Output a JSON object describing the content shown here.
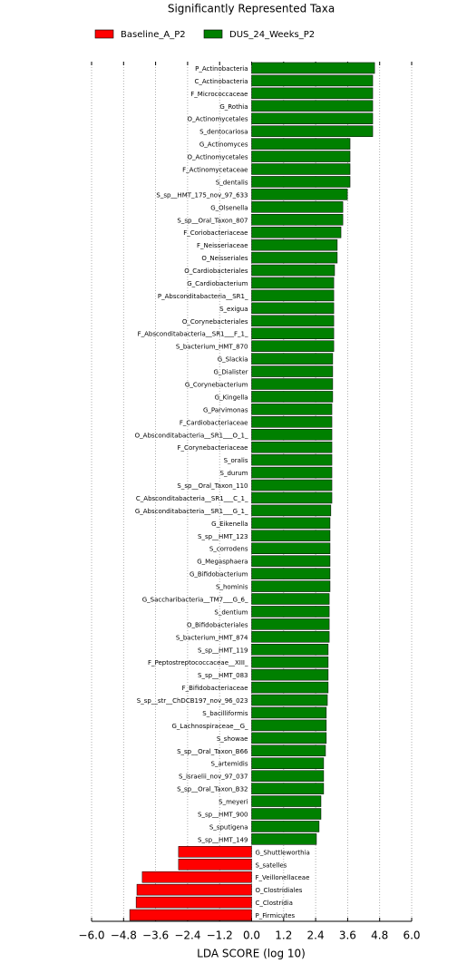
{
  "chart_data": {
    "type": "barh",
    "title": "Significantly Represented Taxa",
    "xlabel": "LDA SCORE (log 10)",
    "categories": [
      "P_Actinobacteria",
      "C_Actinobacteria",
      "F_Micrococcaceae",
      "G_Rothia",
      "O_Actinomycetales",
      "S_dentocariosa",
      "G_Actinomyces",
      "O_Actinomycetales",
      "F_Actinomycetaceae",
      "S_dentalis",
      "S_sp__HMT_175_nov_97_633",
      "G_Olsenella",
      "S_sp__Oral_Taxon_807",
      "F_Coriobacteriaceae",
      "F_Neisseriaceae",
      "O_Neisseriales",
      "O_Cardiobacteriales",
      "G_Cardiobacterium",
      "P_Absconditabacteria__SR1_",
      "S_exigua",
      "O_Corynebacteriales",
      "F_Absconditabacteria__SR1___F_1_",
      "S_bacterium_HMT_870",
      "G_Slackia",
      "G_Dialister",
      "G_Corynebacterium",
      "G_Kingella",
      "G_Parvimonas",
      "F_Cardiobacteriaceae",
      "O_Absconditabacteria__SR1___O_1_",
      "F_Corynebacteriaceae",
      "S_oralis",
      "S_durum",
      "S_sp__Oral_Taxon_110",
      "C_Absconditabacteria__SR1___C_1_",
      "G_Absconditabacteria__SR1___G_1_",
      "G_Eikenella",
      "S_sp__HMT_123",
      "S_corrodens",
      "G_Megasphaera",
      "G_Bifidobacterium",
      "S_hominis",
      "G_Saccharibacteria__TM7___G_6_",
      "S_dentium",
      "O_Bifidobacteriales",
      "S_bacterium_HMT_874",
      "S_sp__HMT_119",
      "F_Peptostreptococcaceae__XIII_",
      "S_sp__HMT_083",
      "F_Bifidobacteriaceae",
      "S_sp__str__ChDCB197_nov_96_023",
      "S_bacilliformis",
      "G_Lachnospiraceae__G_",
      "S_showae",
      "S_sp__Oral_Taxon_B66",
      "S_artemidis",
      "S_israelii_nov_97_037",
      "S_sp__Oral_Taxon_B32",
      "S_meyeri",
      "S_sp__HMT_900",
      "S_sputigena",
      "S_sp__HMT_149",
      "G_Shuttleworthia",
      "S_satelles",
      "F_Veillonellaceae",
      "O_Clostridiales",
      "C_Clostridia",
      "P_Firmicutes"
    ],
    "series": [
      {
        "name": "Baseline_A_P2",
        "color": "#ff0000",
        "values": [
          null,
          null,
          null,
          null,
          null,
          null,
          null,
          null,
          null,
          null,
          null,
          null,
          null,
          null,
          null,
          null,
          null,
          null,
          null,
          null,
          null,
          null,
          null,
          null,
          null,
          null,
          null,
          null,
          null,
          null,
          null,
          null,
          null,
          null,
          null,
          null,
          null,
          null,
          null,
          null,
          null,
          null,
          null,
          null,
          null,
          null,
          null,
          null,
          null,
          null,
          null,
          null,
          null,
          null,
          null,
          null,
          null,
          null,
          null,
          null,
          null,
          null,
          -2.74,
          -2.74,
          -4.1,
          -4.3,
          -4.33,
          -4.57
        ]
      },
      {
        "name": "DUS_24_Weeks_P2",
        "color": "#008000",
        "values": [
          4.61,
          4.54,
          4.54,
          4.54,
          4.54,
          4.54,
          3.69,
          3.69,
          3.69,
          3.69,
          3.59,
          3.42,
          3.42,
          3.35,
          3.21,
          3.21,
          3.11,
          3.08,
          3.08,
          3.08,
          3.08,
          3.08,
          3.08,
          3.04,
          3.04,
          3.04,
          3.04,
          3.01,
          3.01,
          3.01,
          3.01,
          3.01,
          3.01,
          3.01,
          3.01,
          2.97,
          2.94,
          2.94,
          2.94,
          2.94,
          2.94,
          2.94,
          2.91,
          2.91,
          2.91,
          2.91,
          2.87,
          2.87,
          2.87,
          2.87,
          2.84,
          2.8,
          2.8,
          2.8,
          2.77,
          2.7,
          2.7,
          2.7,
          2.6,
          2.6,
          2.53,
          2.43,
          null,
          null,
          null,
          null,
          null,
          null
        ]
      }
    ],
    "xlim": [
      -6,
      6
    ],
    "xticks": [
      {
        "value": -6,
        "label": "−6.0"
      },
      {
        "value": -4.8,
        "label": "−4.8"
      },
      {
        "value": -3.6,
        "label": "−3.6"
      },
      {
        "value": -2.4,
        "label": "−2.4"
      },
      {
        "value": -1.2,
        "label": "−1.2"
      },
      {
        "value": 0,
        "label": "0.0"
      },
      1.2,
      2.4,
      3.6,
      4.8,
      {
        "value": 6,
        "label": "6.0"
      }
    ],
    "grid": true
  }
}
